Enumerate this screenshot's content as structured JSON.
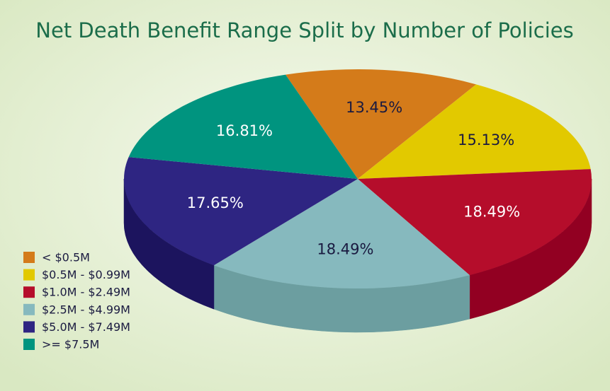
{
  "chart_data": {
    "type": "pie",
    "title": "Net Death Benefit Range Split by Number of Policies",
    "categories": [
      "< $0.5M",
      "$0.5M - $0.99M",
      "$1.0M - $2.49M",
      "$2.5M - $4.99M",
      "$5.0M - $7.49M",
      ">= $7.5M"
    ],
    "values": [
      13.45,
      15.13,
      18.49,
      18.49,
      17.65,
      16.81
    ],
    "value_labels": [
      "13.45%",
      "15.13%",
      "18.49%",
      "18.49%",
      "17.65%",
      "16.81%"
    ],
    "colors": [
      "#d47b1a",
      "#e2c900",
      "#b50d2b",
      "#86b9be",
      "#2e2582",
      "#00947f"
    ],
    "side_colors": [
      "#a85e10",
      "#b09c00",
      "#920022",
      "#6c9ea0",
      "#1c145e",
      "#00705f"
    ],
    "legend": "left"
  }
}
